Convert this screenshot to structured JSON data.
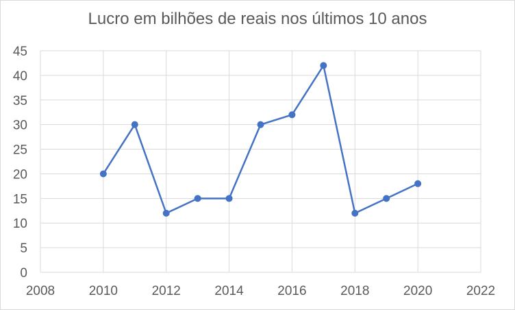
{
  "chart_data": {
    "type": "scatter",
    "title": "Lucro em bilhões de reais nos últimos 10 anos",
    "xlabel": "",
    "ylabel": "",
    "xlim": [
      2008,
      2022
    ],
    "ylim": [
      0,
      45
    ],
    "x_ticks": [
      2008,
      2010,
      2012,
      2014,
      2016,
      2018,
      2020,
      2022
    ],
    "y_ticks": [
      0,
      5,
      10,
      15,
      20,
      25,
      30,
      35,
      40,
      45
    ],
    "x_tick_labels": [
      "2008",
      "2010",
      "2012",
      "2014",
      "2016",
      "2018",
      "2020",
      "2022"
    ],
    "y_tick_labels": [
      "0",
      "5",
      "10",
      "15",
      "20",
      "25",
      "30",
      "35",
      "40",
      "45"
    ],
    "grid": true,
    "legend": "none",
    "series": [
      {
        "x": [
          2010,
          2011,
          2012,
          2013,
          2014,
          2015,
          2016,
          2017,
          2018,
          2019,
          2020
        ],
        "y": [
          20,
          30,
          12,
          15,
          15,
          30,
          32,
          42,
          12,
          15,
          18
        ],
        "color": "#4472c4",
        "markers": true,
        "lines": true
      }
    ]
  }
}
